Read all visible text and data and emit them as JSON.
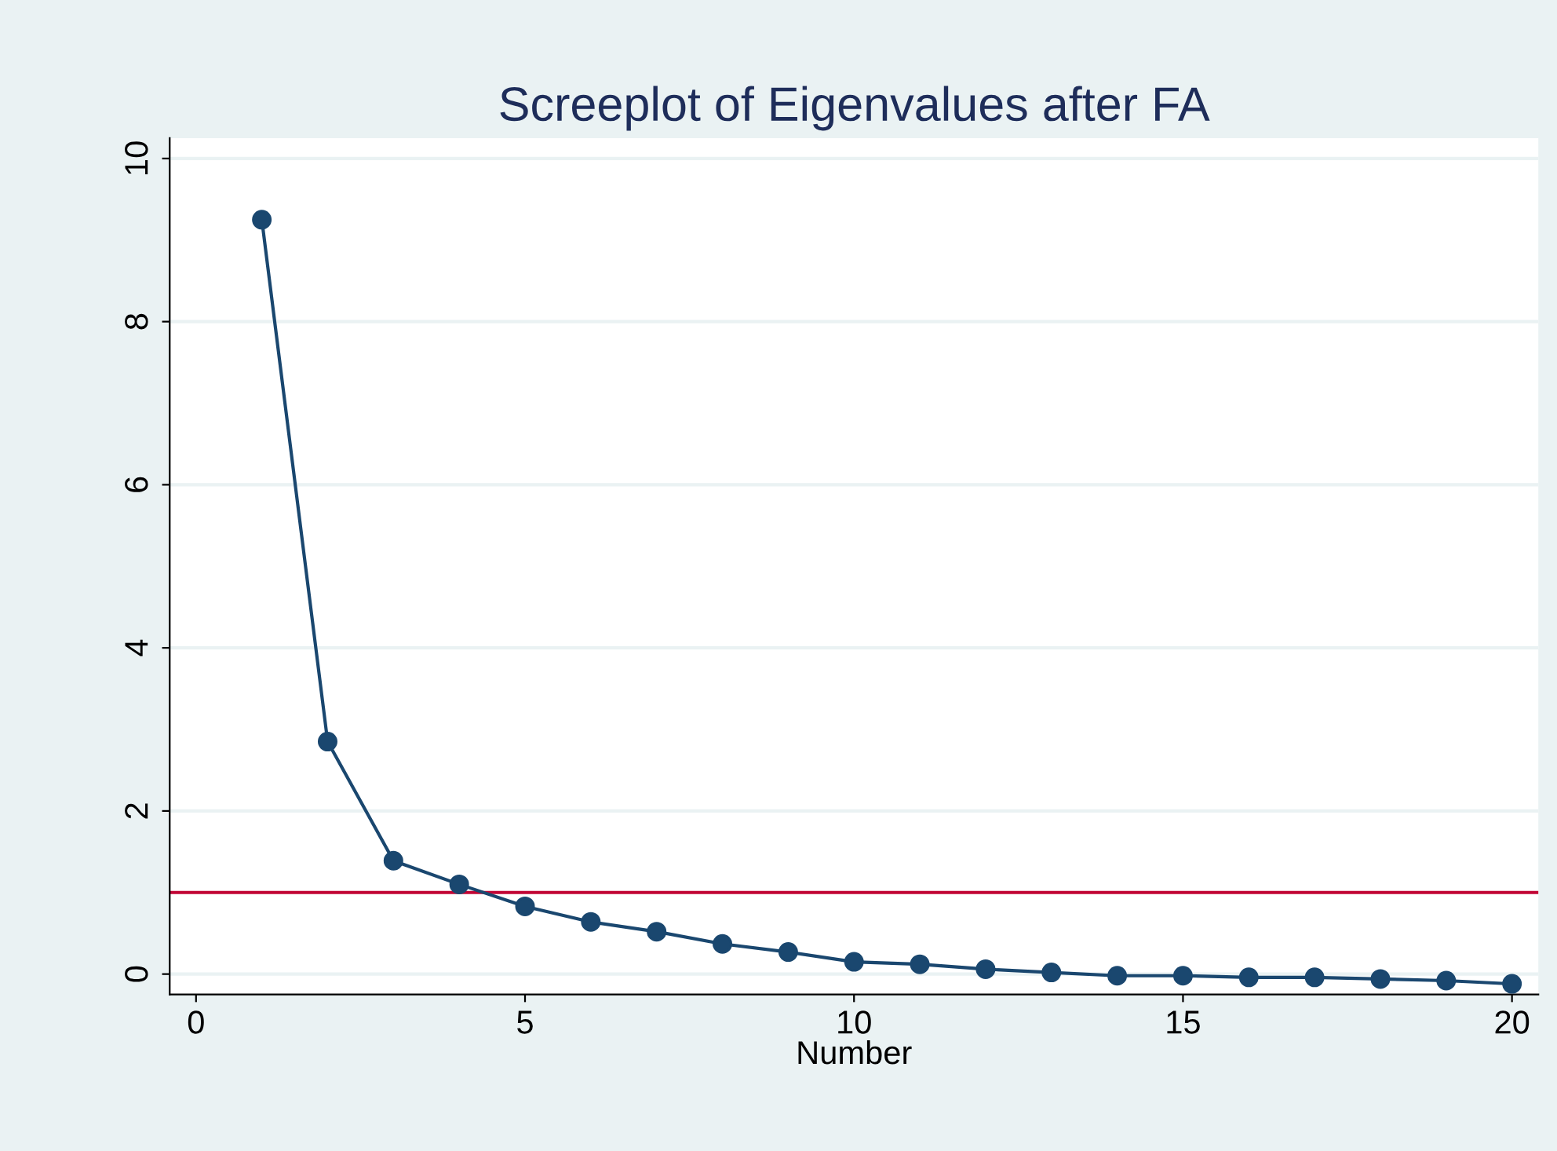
{
  "chart_data": {
    "type": "line",
    "title": "Screeplot of Eigenvalues after FA",
    "xlabel": "Number",
    "x": [
      1,
      2,
      3,
      4,
      5,
      6,
      7,
      8,
      9,
      10,
      11,
      12,
      13,
      14,
      15,
      16,
      17,
      18,
      19,
      20
    ],
    "series": [
      {
        "color": "#1a476f",
        "values": [
          9.25,
          2.85,
          1.39,
          1.1,
          0.83,
          0.64,
          0.52,
          0.37,
          0.27,
          0.15,
          0.12,
          0.06,
          0.02,
          -0.02,
          -0.02,
          -0.04,
          -0.04,
          -0.06,
          -0.08,
          -0.12
        ]
      }
    ],
    "xlim": [
      -0.4,
      20.4
    ],
    "ylim": [
      -0.25,
      10.25
    ],
    "xticks": [
      0,
      5,
      10,
      15,
      20
    ],
    "yticks": [
      0,
      2,
      4,
      6,
      8,
      10
    ],
    "ref_lines": [
      {
        "axis": "y",
        "value": 1,
        "color": "#c10534"
      }
    ],
    "grid": "y",
    "marker": "circle",
    "line_style": "solid"
  }
}
